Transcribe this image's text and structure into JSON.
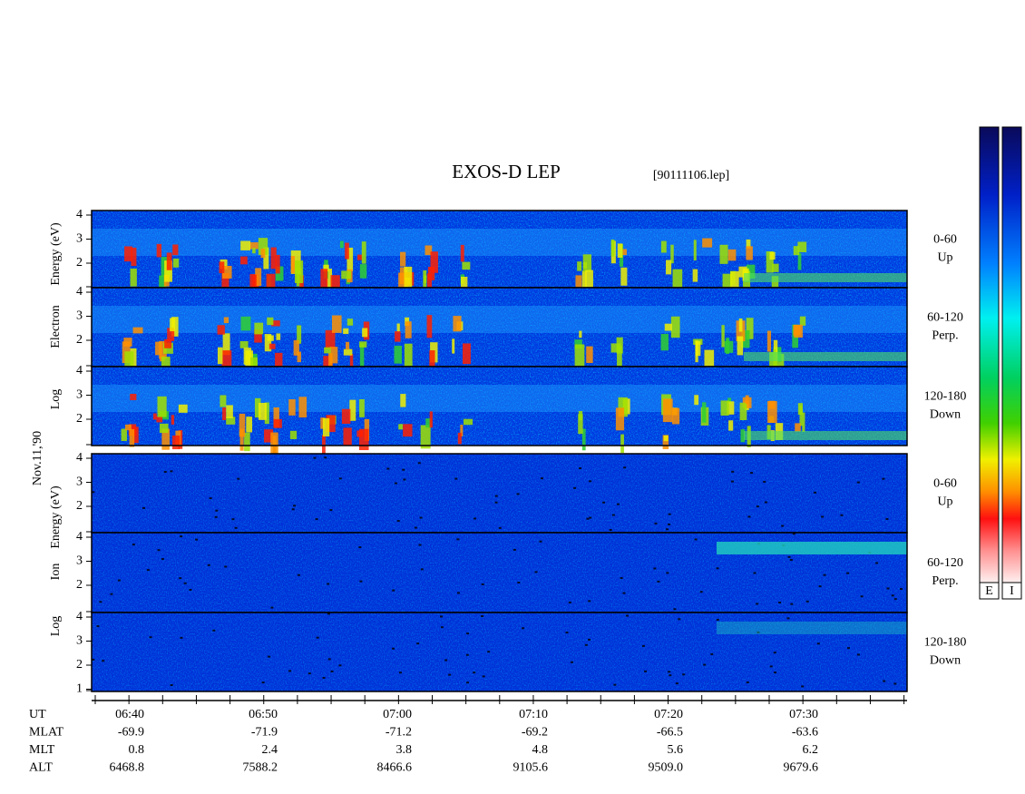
{
  "title": "EXOS-D LEP",
  "file": "[90111106.lep]",
  "date": "Nov.11,'90",
  "electron": {
    "ylabel": [
      "Log",
      "Electron",
      "Energy (eV)"
    ],
    "panels": [
      {
        "angle": "0-60",
        "direction": "Up",
        "yticks": [
          4,
          3,
          2
        ]
      },
      {
        "angle": "60-120",
        "direction": "Perp.",
        "yticks": [
          4,
          3,
          2
        ]
      },
      {
        "angle": "120-180",
        "direction": "Down",
        "yticks": [
          4,
          3,
          2
        ]
      }
    ]
  },
  "ion": {
    "ylabel": [
      "Log",
      "Ion",
      "Energy (eV)"
    ],
    "panels": [
      {
        "angle": "0-60",
        "direction": "Up",
        "yticks": [
          4,
          3,
          2
        ]
      },
      {
        "angle": "60-120",
        "direction": "Perp.",
        "yticks": [
          4,
          3,
          2
        ]
      },
      {
        "angle": "120-180",
        "direction": "Down",
        "yticks": [
          4,
          3,
          2,
          1
        ]
      }
    ]
  },
  "ephemeris": [
    {
      "name": "UT",
      "values": [
        "06:40",
        "06:50",
        "07:00",
        "07:10",
        "07:20",
        "07:30"
      ]
    },
    {
      "name": "MLAT",
      "values": [
        "-69.9",
        "-71.9",
        "-71.2",
        "-69.2",
        "-66.5",
        "-63.6"
      ]
    },
    {
      "name": "MLT",
      "values": [
        "0.8",
        "2.4",
        "3.8",
        "4.8",
        "5.6",
        "6.2"
      ]
    },
    {
      "name": "ALT",
      "values": [
        "6468.8",
        "7588.2",
        "8466.6",
        "9105.6",
        "9509.0",
        "9679.6"
      ]
    }
  ],
  "colorbars": [
    "E",
    "I"
  ]
}
